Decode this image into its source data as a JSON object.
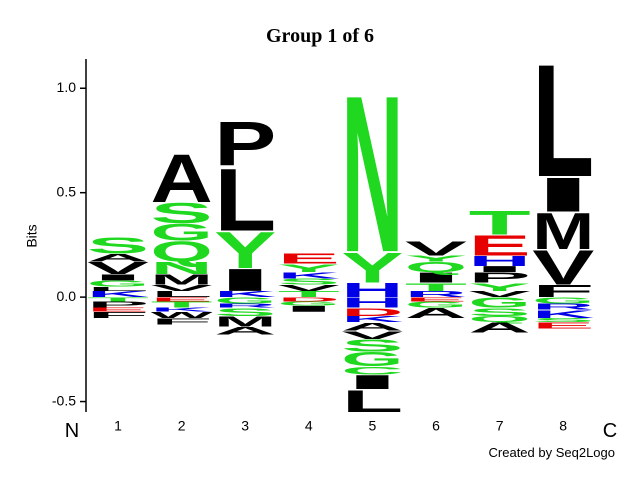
{
  "chart_data": {
    "type": "logo",
    "title": "Group 1 of 6",
    "y_label": "Bits",
    "n_label": "N",
    "c_label": "C",
    "credit": "Created by Seq2Logo",
    "categories": [
      "1",
      "2",
      "3",
      "4",
      "5",
      "6",
      "7",
      "8"
    ],
    "ylim": [
      -0.55,
      1.14
    ],
    "yticks": [
      -0.5,
      {
        "value": 0,
        "label": "0.0"
      },
      0.5,
      {
        "value": 1,
        "label": "1.0"
      }
    ],
    "positions": [
      {
        "letters": [
          "K",
          "L",
          "G",
          "I",
          "V",
          "A",
          "S",
          "T",
          "P",
          "E",
          "F"
        ],
        "values": [
          0.03,
          0.02,
          0.03,
          0.03,
          0.06,
          0.04,
          0.08,
          -0.02,
          -0.03,
          -0.02,
          -0.03
        ],
        "colors": [
          "#0000e6",
          "#000000",
          "#1fd81f",
          "#000000",
          "#000000",
          "#000000",
          "#1fd81f",
          "#1fd81f",
          "#000000",
          "#e60000",
          "#000000"
        ]
      },
      {
        "letters": [
          "L",
          "V",
          "M",
          "N",
          "Q",
          "G",
          "S",
          "A",
          "E",
          "T",
          "K",
          "W",
          "F"
        ],
        "values": [
          0.03,
          0.03,
          0.05,
          0.06,
          0.1,
          0.085,
          0.1,
          0.24,
          -0.02,
          -0.03,
          -0.02,
          -0.03,
          -0.03
        ],
        "colors": [
          "#000000",
          "#000000",
          "#000000",
          "#1fd81f",
          "#1fd81f",
          "#1fd81f",
          "#1fd81f",
          "#000000",
          "#e60000",
          "#1fd81f",
          "#0000e6",
          "#000000",
          "#000000"
        ]
      },
      {
        "letters": [
          "K",
          "I",
          "Y",
          "L",
          "P",
          "G",
          "R",
          "S",
          "M",
          "A"
        ],
        "values": [
          0.03,
          0.11,
          0.18,
          0.31,
          0.22,
          -0.03,
          -0.02,
          -0.04,
          -0.05,
          -0.04
        ],
        "colors": [
          "#0000e6",
          "#000000",
          "#1fd81f",
          "#000000",
          "#000000",
          "#1fd81f",
          "#0000e6",
          "#1fd81f",
          "#000000",
          "#000000"
        ]
      },
      {
        "letters": [
          "T",
          "V",
          "S",
          "K",
          "Y",
          "E",
          "D",
          "G",
          "I"
        ],
        "values": [
          0.03,
          0.03,
          0.03,
          0.03,
          0.04,
          0.05,
          -0.02,
          -0.02,
          -0.03
        ],
        "colors": [
          "#1fd81f",
          "#000000",
          "#1fd81f",
          "#0000e6",
          "#1fd81f",
          "#e60000",
          "#e60000",
          "#1fd81f",
          "#000000"
        ]
      },
      {
        "letters": [
          "H",
          "Y",
          "N",
          "H",
          "D",
          "K",
          "A",
          "V",
          "S",
          "G",
          "C",
          "I",
          "L"
        ],
        "values": [
          0.07,
          0.15,
          0.78,
          -0.05,
          -0.04,
          -0.03,
          -0.04,
          -0.04,
          -0.06,
          -0.07,
          -0.04,
          -0.07,
          -0.11
        ],
        "colors": [
          "#0000e6",
          "#1fd81f",
          "#1fd81f",
          "#0000e6",
          "#e60000",
          "#0000e6",
          "#000000",
          "#000000",
          "#1fd81f",
          "#1fd81f",
          "#1fd81f",
          "#000000",
          "#000000"
        ]
      },
      {
        "letters": [
          "R",
          "T",
          "I",
          "Q",
          "Y",
          "V",
          "E",
          "G",
          "A"
        ],
        "values": [
          0.03,
          0.04,
          0.05,
          0.05,
          0.03,
          0.07,
          -0.02,
          -0.03,
          -0.05
        ],
        "colors": [
          "#0000e6",
          "#1fd81f",
          "#000000",
          "#1fd81f",
          "#1fd81f",
          "#000000",
          "#e60000",
          "#1fd81f",
          "#000000"
        ]
      },
      {
        "letters": [
          "V",
          "Y",
          "P",
          "I",
          "H",
          "E",
          "T",
          "G",
          "S",
          "Q",
          "A"
        ],
        "values": [
          0.03,
          0.04,
          0.05,
          0.03,
          0.05,
          0.1,
          0.12,
          -0.05,
          -0.04,
          -0.03,
          -0.05
        ],
        "colors": [
          "#000000",
          "#1fd81f",
          "#000000",
          "#000000",
          "#0000e6",
          "#e60000",
          "#1fd81f",
          "#1fd81f",
          "#1fd81f",
          "#1fd81f",
          "#000000"
        ]
      },
      {
        "letters": [
          "F",
          "V",
          "M",
          "I",
          "L",
          "G",
          "R",
          "K",
          "S",
          "E"
        ],
        "values": [
          0.06,
          0.17,
          0.18,
          0.17,
          0.56,
          -0.03,
          -0.03,
          -0.04,
          -0.02,
          -0.03
        ],
        "colors": [
          "#000000",
          "#000000",
          "#000000",
          "#000000",
          "#000000",
          "#1fd81f",
          "#0000e6",
          "#0000e6",
          "#1fd81f",
          "#e60000"
        ]
      }
    ]
  }
}
